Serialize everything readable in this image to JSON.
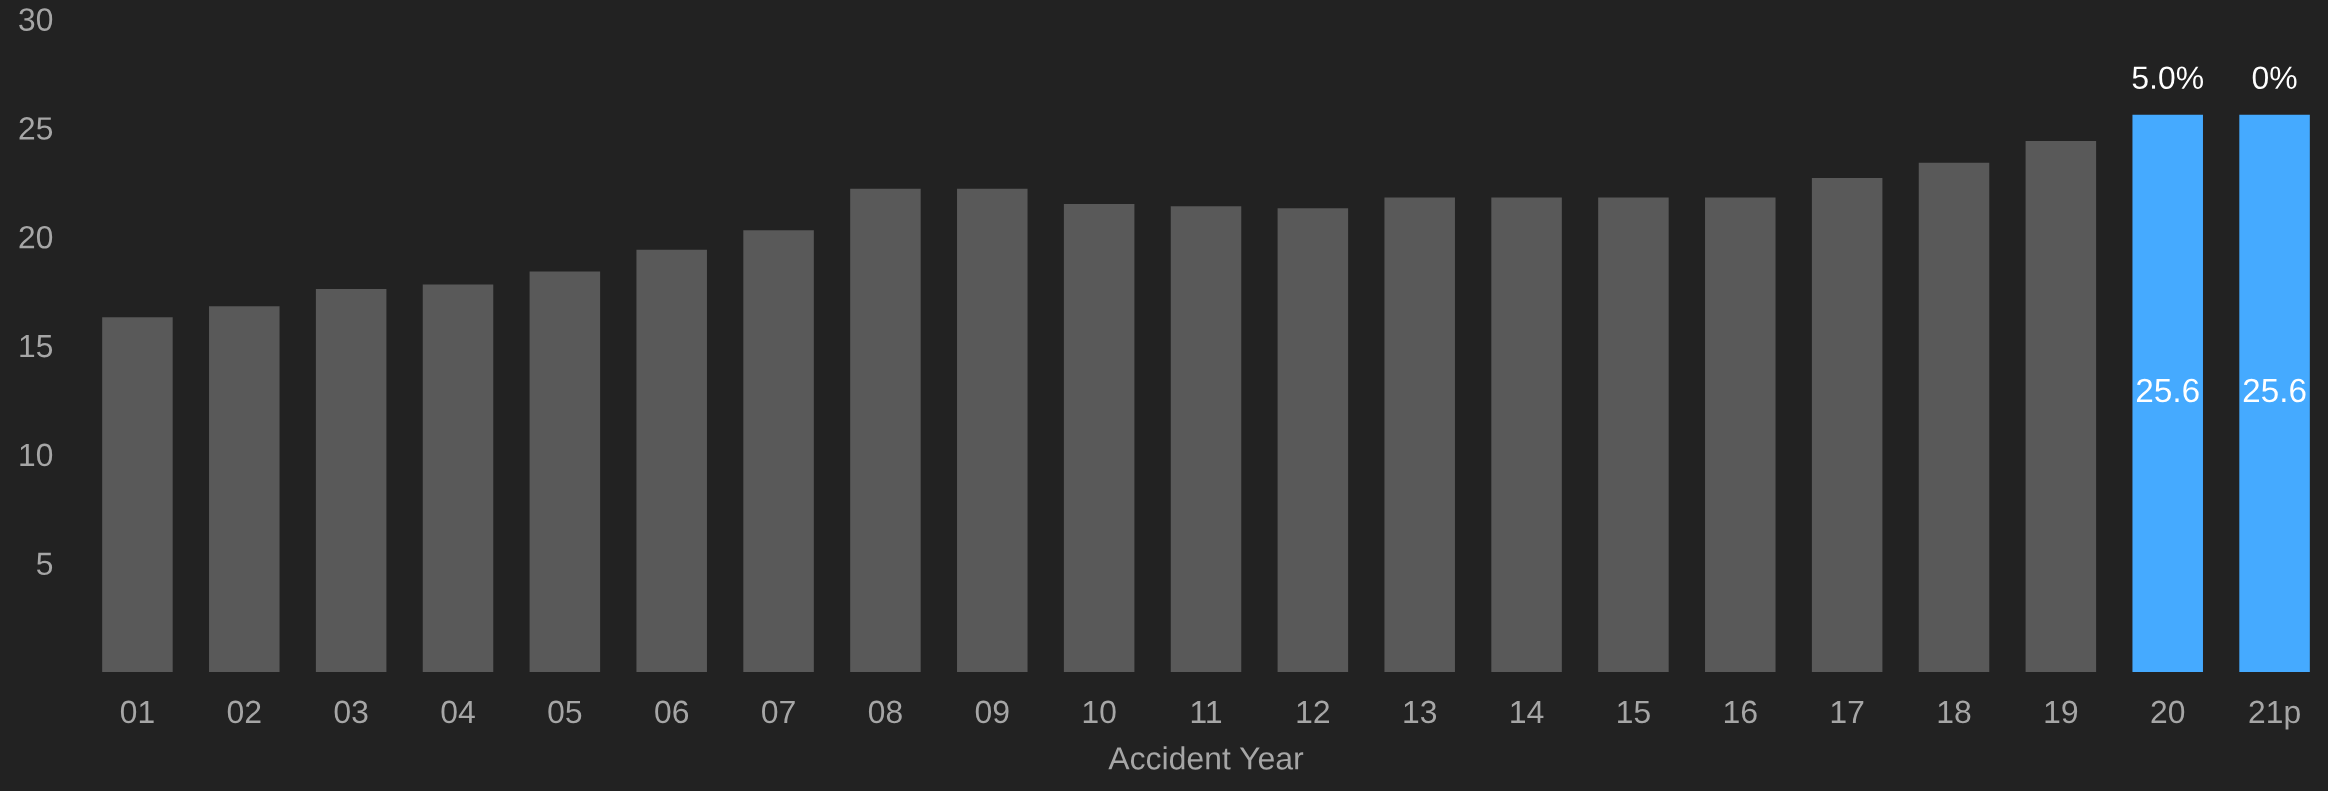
{
  "chart_data": {
    "type": "bar",
    "categories": [
      "01",
      "02",
      "03",
      "04",
      "05",
      "06",
      "07",
      "08",
      "09",
      "10",
      "11",
      "12",
      "13",
      "14",
      "15",
      "16",
      "17",
      "18",
      "19",
      "20",
      "21p"
    ],
    "values": [
      16.3,
      16.8,
      17.6,
      17.8,
      18.4,
      19.4,
      20.3,
      22.2,
      22.2,
      21.5,
      21.4,
      21.3,
      21.8,
      21.8,
      21.8,
      21.8,
      22.7,
      23.4,
      24.4,
      25.6,
      25.6
    ],
    "colors": [
      "#595959",
      "#595959",
      "#595959",
      "#595959",
      "#595959",
      "#595959",
      "#595959",
      "#595959",
      "#595959",
      "#595959",
      "#595959",
      "#595959",
      "#595959",
      "#595959",
      "#595959",
      "#595959",
      "#595959",
      "#595959",
      "#595959",
      "#45aaff",
      "#45aaff"
    ],
    "value_labels": [
      null,
      null,
      null,
      null,
      null,
      null,
      null,
      null,
      null,
      null,
      null,
      null,
      null,
      null,
      null,
      null,
      null,
      null,
      null,
      "25.6",
      "25.6"
    ],
    "annotations": [
      {
        "text": "5.0%",
        "x": "20",
        "y": 25.6
      },
      {
        "text": "0%",
        "x": "21p",
        "y": 25.6
      }
    ],
    "xlabel": "Accident Year",
    "ylim": [
      0,
      30
    ],
    "yticks": [
      5,
      10,
      15,
      20,
      25,
      30
    ],
    "grid": false
  }
}
